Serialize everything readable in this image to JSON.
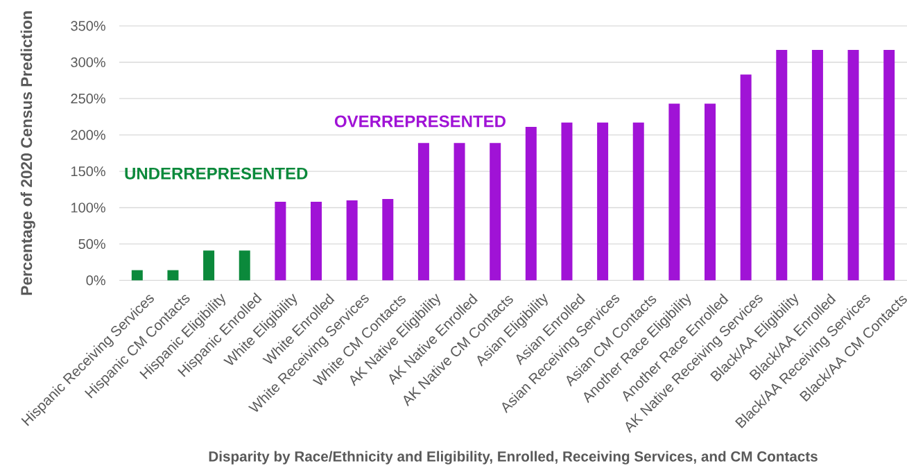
{
  "chart_data": {
    "type": "bar",
    "xlabel": "Disparity by Race/Ethnicity and Eligibility, Enrolled, Receiving Services, and CM Contacts",
    "ylabel": "Percentage of 2020 Census Prediction",
    "categories": [
      "Hispanic Receiving Services",
      "Hispanic CM Contacts",
      "Hispanic Eligibility",
      "Hispanic Enrolled",
      "White Eligibility",
      "White Enrolled",
      "White Receiving Services",
      "White CM Contacts",
      "AK Native Eligibility",
      "AK Native Enrolled",
      "AK Native CM Contacts",
      "Asian Eligibility",
      "Asian Enrolled",
      "Asian Receiving Services",
      "Asian CM Contacts",
      "Another Race Eligibility",
      "Another Race Enrolled",
      "AK Native Receiving Services",
      "Black/AA Eligibility",
      "Black/AA Enrolled",
      "Black/AA Receiving Services",
      "Black/AA CM Contacts"
    ],
    "values": [
      14,
      14,
      41,
      41,
      108,
      108,
      110,
      112,
      189,
      189,
      189,
      211,
      217,
      217,
      217,
      243,
      243,
      283,
      317,
      317,
      317,
      317
    ],
    "colors": [
      "#0b893b",
      "#0b893b",
      "#0b893b",
      "#0b893b",
      "#a013d6",
      "#a013d6",
      "#a013d6",
      "#a013d6",
      "#a013d6",
      "#a013d6",
      "#a013d6",
      "#a013d6",
      "#a013d6",
      "#a013d6",
      "#a013d6",
      "#a013d6",
      "#a013d6",
      "#a013d6",
      "#a013d6",
      "#a013d6",
      "#a013d6",
      "#a013d6"
    ],
    "ylim": [
      0,
      350
    ],
    "yticks": [
      {
        "value": 0,
        "label": "0%"
      },
      {
        "value": 50,
        "label": "50%"
      },
      {
        "value": 100,
        "label": "100%"
      },
      {
        "value": 150,
        "label": "150%"
      },
      {
        "value": 200,
        "label": "200%"
      },
      {
        "value": 250,
        "label": "250%"
      },
      {
        "value": 300,
        "label": "300%"
      },
      {
        "value": 350,
        "label": "350%"
      }
    ],
    "grid": "y",
    "annotations": [
      "UNDERREPRESENTED",
      "OVERREPRESENTED"
    ]
  }
}
